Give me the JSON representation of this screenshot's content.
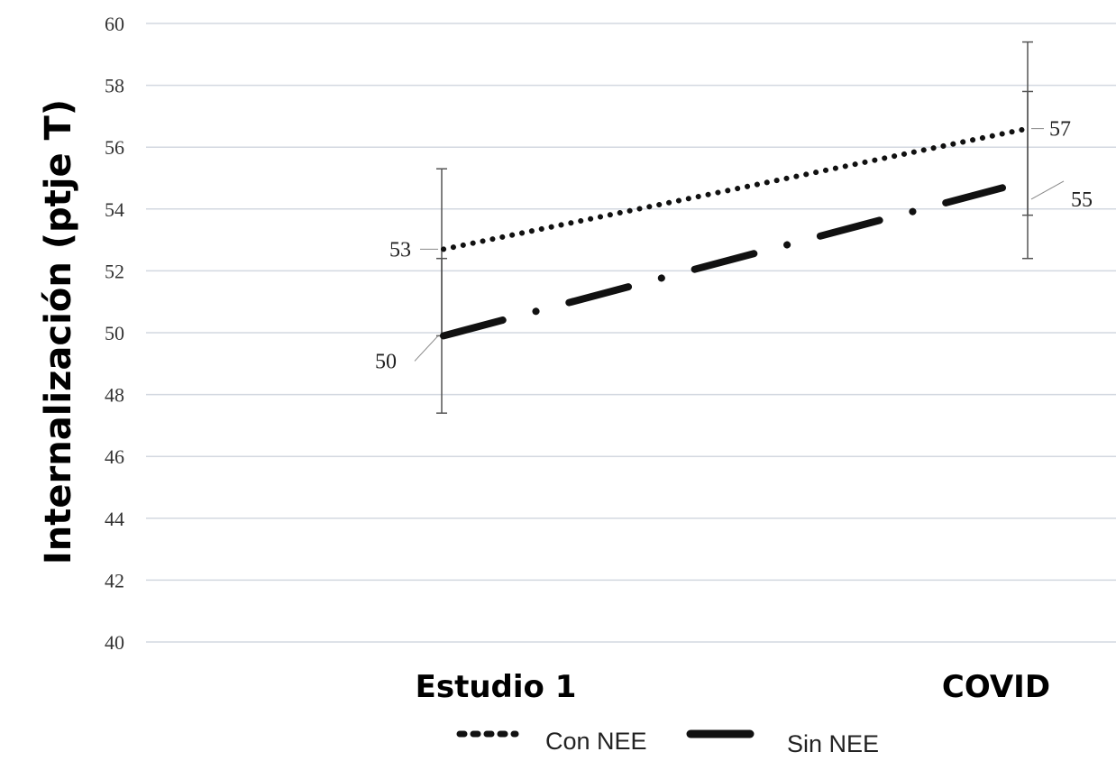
{
  "chart_data": {
    "type": "line",
    "title": "",
    "categories": [
      "Estudio 1",
      "COVID"
    ],
    "ylabel": "Internalización (ptje T)",
    "xlabel": "",
    "ylim": [
      40,
      60
    ],
    "yticks": [
      40,
      42,
      44,
      46,
      48,
      50,
      52,
      54,
      56,
      58,
      60
    ],
    "grid": true,
    "legend_position": "bottom",
    "series": [
      {
        "name": "Con NEE",
        "style": "dotted",
        "color": "#111111",
        "values": [
          52.7,
          56.6
        ],
        "labels": [
          "53",
          "57"
        ],
        "error_bars": [
          [
            49.9,
            55.3
          ],
          [
            53.8,
            59.4
          ]
        ]
      },
      {
        "name": "Sin NEE",
        "style": "dash-dot",
        "color": "#111111",
        "values": [
          49.9,
          54.9
        ],
        "labels": [
          "50",
          "55"
        ],
        "error_bars": [
          [
            47.4,
            52.4
          ],
          [
            52.4,
            57.8
          ]
        ]
      }
    ]
  }
}
